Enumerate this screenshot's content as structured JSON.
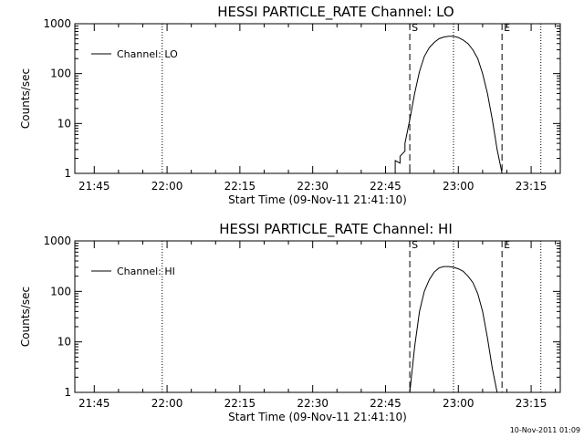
{
  "chart_data": [
    {
      "type": "line",
      "title": "HESSI PARTICLE_RATE Channel: LO",
      "xlabel": "Start Time (09-Nov-11 21:41:10)",
      "ylabel": "Counts/sec",
      "yscale": "log",
      "ylim": [
        1,
        1000
      ],
      "xlim": [
        "21:41",
        "23:21"
      ],
      "x_ticks": [
        "21:45",
        "22:00",
        "22:15",
        "22:30",
        "22:45",
        "23:00",
        "23:15"
      ],
      "y_ticks": [
        "1",
        "10",
        "100",
        "1000"
      ],
      "legend": {
        "label": "Channel: LO",
        "position": "top-left"
      },
      "markers": [
        {
          "label": "S",
          "x": "22:50",
          "style": "dashed"
        },
        {
          "label": "E",
          "x": "23:09",
          "style": "dashed"
        }
      ],
      "vertical_lines": [
        {
          "x": "21:59",
          "style": "dotted"
        },
        {
          "x": "22:59",
          "style": "dotted"
        },
        {
          "x": "23:17",
          "style": "dotted"
        }
      ],
      "grid": false,
      "series": [
        {
          "name": "Channel: LO",
          "x": [
            "22:47",
            "22:47",
            "22:48",
            "22:48",
            "22:49",
            "22:49",
            "22:50",
            "22:51",
            "22:52",
            "22:53",
            "22:54",
            "22:55",
            "22:56",
            "22:57",
            "22:58",
            "22:59",
            "23:00",
            "23:01",
            "23:02",
            "23:03",
            "23:04",
            "23:05",
            "23:06",
            "23:07",
            "23:08",
            "23:09"
          ],
          "values": [
            1,
            1.8,
            1.6,
            2.2,
            2.8,
            4,
            12,
            40,
            110,
            220,
            330,
            420,
            500,
            540,
            560,
            560,
            530,
            470,
            400,
            300,
            200,
            100,
            40,
            12,
            3,
            1
          ]
        }
      ]
    },
    {
      "type": "line",
      "title": "HESSI PARTICLE_RATE Channel: HI",
      "xlabel": "Start Time (09-Nov-11 21:41:10)",
      "ylabel": "Counts/sec",
      "yscale": "log",
      "ylim": [
        1,
        1000
      ],
      "xlim": [
        "21:41",
        "23:21"
      ],
      "x_ticks": [
        "21:45",
        "22:00",
        "22:15",
        "22:30",
        "22:45",
        "23:00",
        "23:15"
      ],
      "y_ticks": [
        "1",
        "10",
        "100",
        "1000"
      ],
      "legend": {
        "label": "Channel: HI",
        "position": "top-left"
      },
      "markers": [
        {
          "label": "S",
          "x": "22:50",
          "style": "dashed"
        },
        {
          "label": "E",
          "x": "23:09",
          "style": "dashed"
        }
      ],
      "vertical_lines": [
        {
          "x": "21:59",
          "style": "dotted"
        },
        {
          "x": "22:59",
          "style": "dotted"
        },
        {
          "x": "23:17",
          "style": "dotted"
        }
      ],
      "grid": false,
      "series": [
        {
          "name": "Channel: HI",
          "x": [
            "22:50",
            "22:51",
            "22:52",
            "22:53",
            "22:54",
            "22:55",
            "22:56",
            "22:57",
            "22:58",
            "22:59",
            "23:00",
            "23:01",
            "23:02",
            "23:03",
            "23:04",
            "23:05",
            "23:06",
            "23:07",
            "23:08"
          ],
          "values": [
            1,
            8,
            40,
            100,
            170,
            240,
            290,
            310,
            310,
            300,
            280,
            250,
            200,
            150,
            90,
            40,
            12,
            3,
            1
          ]
        }
      ]
    }
  ],
  "timestamp": "10-Nov-2011 01:09"
}
